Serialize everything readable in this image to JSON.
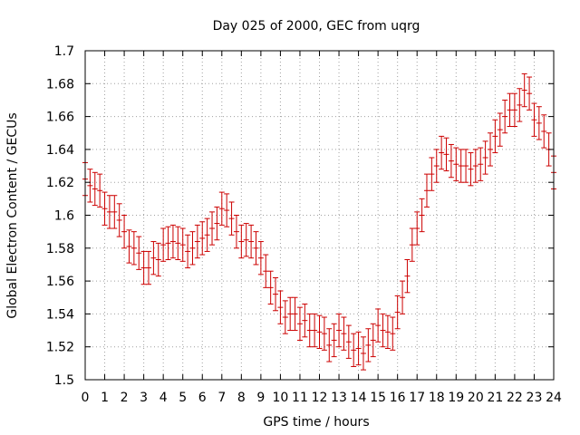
{
  "chart_data": {
    "type": "errorbar",
    "title": "Day 025 of 2000, GEC from uqrg",
    "xlabel": "GPS time / hours",
    "ylabel": "Global Electron Content / GECUs",
    "xlim": [
      0,
      24
    ],
    "ylim": [
      1.5,
      1.7
    ],
    "xticks": [
      "0",
      "1",
      "2",
      "3",
      "4",
      "5",
      "6",
      "7",
      "8",
      "9",
      "10",
      "11",
      "12",
      "13",
      "14",
      "15",
      "16",
      "17",
      "18",
      "19",
      "20",
      "21",
      "22",
      "23",
      "24"
    ],
    "yticks": [
      "1.5",
      "1.52",
      "1.54",
      "1.56",
      "1.58",
      "1.6",
      "1.62",
      "1.64",
      "1.66",
      "1.68",
      "1.7"
    ],
    "grid": true,
    "series": [
      {
        "name": "GEC",
        "color": "#cc0000",
        "error": 0.01,
        "x": [
          0,
          0.25,
          0.5,
          0.75,
          1,
          1.25,
          1.5,
          1.75,
          2,
          2.25,
          2.5,
          2.75,
          3,
          3.25,
          3.5,
          3.75,
          4,
          4.25,
          4.5,
          4.75,
          5,
          5.25,
          5.5,
          5.75,
          6,
          6.25,
          6.5,
          6.75,
          7,
          7.25,
          7.5,
          7.75,
          8,
          8.25,
          8.5,
          8.75,
          9,
          9.25,
          9.5,
          9.75,
          10,
          10.25,
          10.5,
          10.75,
          11,
          11.25,
          11.5,
          11.75,
          12,
          12.25,
          12.5,
          12.75,
          13,
          13.25,
          13.5,
          13.75,
          14,
          14.25,
          14.5,
          14.75,
          15,
          15.25,
          15.5,
          15.75,
          16,
          16.25,
          16.5,
          16.75,
          17,
          17.25,
          17.5,
          17.75,
          18,
          18.25,
          18.5,
          18.75,
          19,
          19.25,
          19.5,
          19.75,
          20,
          20.25,
          20.5,
          20.75,
          21,
          21.25,
          21.5,
          21.75,
          22,
          22.25,
          22.5,
          22.75,
          23,
          23.25,
          23.5,
          23.75,
          24
        ],
        "values": [
          1.622,
          1.618,
          1.616,
          1.615,
          1.604,
          1.602,
          1.602,
          1.597,
          1.59,
          1.581,
          1.58,
          1.577,
          1.568,
          1.568,
          1.574,
          1.573,
          1.582,
          1.583,
          1.584,
          1.583,
          1.582,
          1.578,
          1.58,
          1.584,
          1.586,
          1.588,
          1.592,
          1.595,
          1.604,
          1.603,
          1.598,
          1.59,
          1.584,
          1.585,
          1.584,
          1.58,
          1.574,
          1.566,
          1.556,
          1.552,
          1.544,
          1.538,
          1.54,
          1.54,
          1.534,
          1.536,
          1.53,
          1.53,
          1.529,
          1.528,
          1.521,
          1.524,
          1.53,
          1.528,
          1.523,
          1.518,
          1.519,
          1.516,
          1.521,
          1.524,
          1.533,
          1.53,
          1.529,
          1.528,
          1.541,
          1.55,
          1.563,
          1.582,
          1.592,
          1.6,
          1.615,
          1.625,
          1.63,
          1.638,
          1.637,
          1.633,
          1.631,
          1.63,
          1.63,
          1.628,
          1.63,
          1.631,
          1.635,
          1.64,
          1.648,
          1.652,
          1.66,
          1.664,
          1.664,
          1.667,
          1.676,
          1.674,
          1.658,
          1.656,
          1.651,
          1.64,
          1.626
        ]
      }
    ]
  }
}
